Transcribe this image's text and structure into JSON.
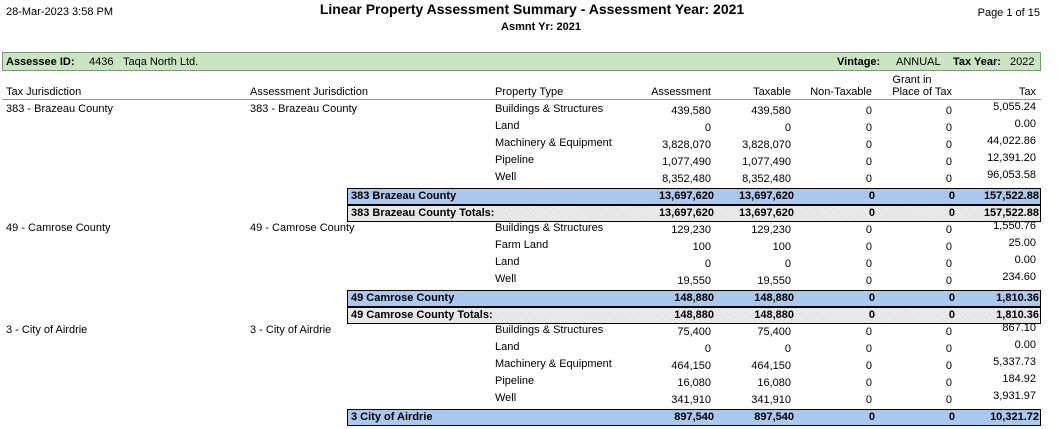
{
  "header": {
    "date": "28-Mar-2023  3:58 PM",
    "title": "Linear Property Assessment Summary  -  Assessment Year: 2021",
    "subtitle": "Asmnt Yr: 2021",
    "page": "Page 1 of 15"
  },
  "assessee": {
    "id_label": "Assessee ID:",
    "id": "4436",
    "name": "Taqa North Ltd.",
    "vintage_label": "Vintage:",
    "vintage": "ANNUAL",
    "tax_year_label": "Tax Year:",
    "tax_year": "2022"
  },
  "columns": {
    "tax_jurisdiction": "Tax Jurisdiction",
    "assessment_jurisdiction": "Assessment Jurisdiction",
    "property_type": "Property Type",
    "assessment": "Assessment",
    "taxable": "Taxable",
    "non_taxable": "Non-Taxable",
    "grant_line1": "Grant in",
    "grant_line2": "Place of Tax",
    "tax": "Tax"
  },
  "groups": [
    {
      "tax_jurisdiction": "383 - Brazeau County",
      "assessment_jurisdiction": "383 - Brazeau County",
      "rows": [
        {
          "property_type": "Buildings & Structures",
          "assessment": "439,580",
          "taxable": "439,580",
          "non_taxable": "0",
          "grant": "0",
          "tax": "5,055.24"
        },
        {
          "property_type": "Land",
          "assessment": "0",
          "taxable": "0",
          "non_taxable": "0",
          "grant": "0",
          "tax": "0.00"
        },
        {
          "property_type": "Machinery & Equipment",
          "assessment": "3,828,070",
          "taxable": "3,828,070",
          "non_taxable": "0",
          "grant": "0",
          "tax": "44,022.86"
        },
        {
          "property_type": "Pipeline",
          "assessment": "1,077,490",
          "taxable": "1,077,490",
          "non_taxable": "0",
          "grant": "0",
          "tax": "12,391.20"
        },
        {
          "property_type": "Well",
          "assessment": "8,352,480",
          "taxable": "8,352,480",
          "non_taxable": "0",
          "grant": "0",
          "tax": "96,053.58"
        }
      ],
      "subtotal": {
        "label": "383 Brazeau County",
        "assessment": "13,697,620",
        "taxable": "13,697,620",
        "non_taxable": "0",
        "grant": "0",
        "tax": "157,522.88"
      },
      "total": {
        "label": "383 Brazeau County Totals:",
        "assessment": "13,697,620",
        "taxable": "13,697,620",
        "non_taxable": "0",
        "grant": "0",
        "tax": "157,522.88"
      }
    },
    {
      "tax_jurisdiction": "49 - Camrose County",
      "assessment_jurisdiction": "49 - Camrose County",
      "rows": [
        {
          "property_type": "Buildings & Structures",
          "assessment": "129,230",
          "taxable": "129,230",
          "non_taxable": "0",
          "grant": "0",
          "tax": "1,550.76"
        },
        {
          "property_type": "Farm Land",
          "assessment": "100",
          "taxable": "100",
          "non_taxable": "0",
          "grant": "0",
          "tax": "25.00"
        },
        {
          "property_type": "Land",
          "assessment": "0",
          "taxable": "0",
          "non_taxable": "0",
          "grant": "0",
          "tax": "0.00"
        },
        {
          "property_type": "Well",
          "assessment": "19,550",
          "taxable": "19,550",
          "non_taxable": "0",
          "grant": "0",
          "tax": "234.60"
        }
      ],
      "subtotal": {
        "label": "49 Camrose County",
        "assessment": "148,880",
        "taxable": "148,880",
        "non_taxable": "0",
        "grant": "0",
        "tax": "1,810.36"
      },
      "total": {
        "label": "49 Camrose County Totals:",
        "assessment": "148,880",
        "taxable": "148,880",
        "non_taxable": "0",
        "grant": "0",
        "tax": "1,810.36"
      }
    },
    {
      "tax_jurisdiction": "3 - City of Airdrie",
      "assessment_jurisdiction": "3 - City of Airdrie",
      "rows": [
        {
          "property_type": "Buildings & Structures",
          "assessment": "75,400",
          "taxable": "75,400",
          "non_taxable": "0",
          "grant": "0",
          "tax": "867.10"
        },
        {
          "property_type": "Land",
          "assessment": "0",
          "taxable": "0",
          "non_taxable": "0",
          "grant": "0",
          "tax": "0.00"
        },
        {
          "property_type": "Machinery & Equipment",
          "assessment": "464,150",
          "taxable": "464,150",
          "non_taxable": "0",
          "grant": "0",
          "tax": "5,337.73"
        },
        {
          "property_type": "Pipeline",
          "assessment": "16,080",
          "taxable": "16,080",
          "non_taxable": "0",
          "grant": "0",
          "tax": "184.92"
        },
        {
          "property_type": "Well",
          "assessment": "341,910",
          "taxable": "341,910",
          "non_taxable": "0",
          "grant": "0",
          "tax": "3,931.97"
        }
      ],
      "subtotal": {
        "label": "3 City of Airdrie",
        "assessment": "897,540",
        "taxable": "897,540",
        "non_taxable": "0",
        "grant": "0",
        "tax": "10,321.72"
      }
    }
  ]
}
